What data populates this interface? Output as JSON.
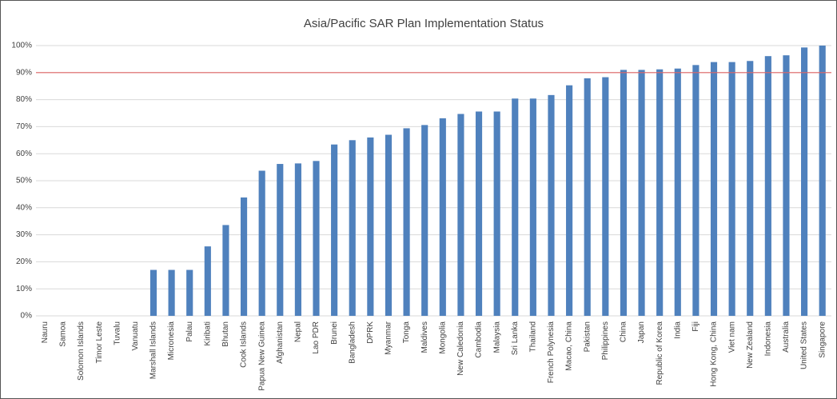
{
  "chart_data": {
    "type": "bar",
    "title": "Asia/Pacific SAR Plan Implementation Status",
    "categories": [
      "Nauru",
      "Samoa",
      "Solomon Islands",
      "Timor Leste",
      "Tuvalu",
      "Vanuatu",
      "Marshall Islands",
      "Micronesia",
      "Palau",
      "Kiribati",
      "Bhutan",
      "Cook Islands",
      "Papua New Guinea",
      "Afghanistan",
      "Nepal",
      "Lao PDR",
      "Brunei",
      "Bangladesh",
      "DPRK",
      "Myanmar",
      "Tonga",
      "Maldives",
      "Mongolia",
      "New Caledonia",
      "Cambodia",
      "Malaysia",
      "Sri Lanka",
      "Thailand",
      "French Polynesia",
      "Macao, China",
      "Pakistan",
      "Philippines",
      "China",
      "Japan",
      "Republic of Korea",
      "India",
      "Fiji",
      "Hong Kong, China",
      "Viet nam",
      "New Zealand",
      "Indonesia",
      "Australia",
      "United States",
      "Singapore"
    ],
    "values": [
      0,
      0,
      0,
      0,
      0,
      0,
      17,
      17,
      17,
      25.7,
      33.6,
      43.8,
      53.7,
      56.2,
      56.4,
      57.3,
      63.4,
      65,
      66,
      67,
      69.4,
      70.6,
      73.1,
      74.7,
      75.6,
      75.6,
      80.4,
      80.4,
      81.7,
      85.3,
      87.9,
      88.3,
      91,
      91,
      91.2,
      91.5,
      92.8,
      93.9,
      93.9,
      94.3,
      96.1,
      96.4,
      99.3,
      100
    ],
    "color": "#4f81bd",
    "ylim": [
      0,
      100
    ],
    "yticks": [
      {
        "value": 0,
        "label": "0%"
      },
      {
        "value": 10,
        "label": "10%"
      },
      {
        "value": 20,
        "label": "20%"
      },
      {
        "value": 30,
        "label": "30%"
      },
      {
        "value": 40,
        "label": "40%"
      },
      {
        "value": 50,
        "label": "50%"
      },
      {
        "value": 60,
        "label": "60%"
      },
      {
        "value": 70,
        "label": "70%"
      },
      {
        "value": 80,
        "label": "80%"
      },
      {
        "value": 90,
        "label": "90%"
      },
      {
        "value": 100,
        "label": "100%"
      }
    ],
    "grid": true,
    "target_line": {
      "value": 90,
      "color": "#e06666"
    }
  }
}
